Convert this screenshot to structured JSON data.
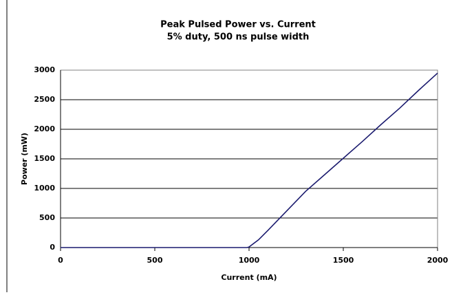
{
  "chart_data": {
    "type": "line",
    "title": "Peak Pulsed Power vs. Current",
    "subtitle": "5% duty, 500 ns pulse width",
    "x_label": "Current (mA)",
    "y_label": "Power (mW)",
    "x": [
      0,
      500,
      900,
      990,
      1000,
      1050,
      1100,
      1200,
      1300,
      1400,
      1500,
      1600,
      1700,
      1800,
      1900,
      2000
    ],
    "series": [
      {
        "name": "Power",
        "color": "#1a1a6e",
        "values": [
          0,
          0,
          0,
          0,
          10,
          130,
          290,
          620,
          950,
          1230,
          1510,
          1790,
          2080,
          2360,
          2660,
          2950
        ]
      }
    ],
    "xlim": [
      0,
      2000
    ],
    "xticks": [
      0,
      500,
      1000,
      1500,
      2000
    ],
    "ylim": [
      0,
      3000
    ],
    "yticks": [
      0,
      500,
      1000,
      1500,
      2000,
      2500,
      3000
    ],
    "grid": true
  }
}
